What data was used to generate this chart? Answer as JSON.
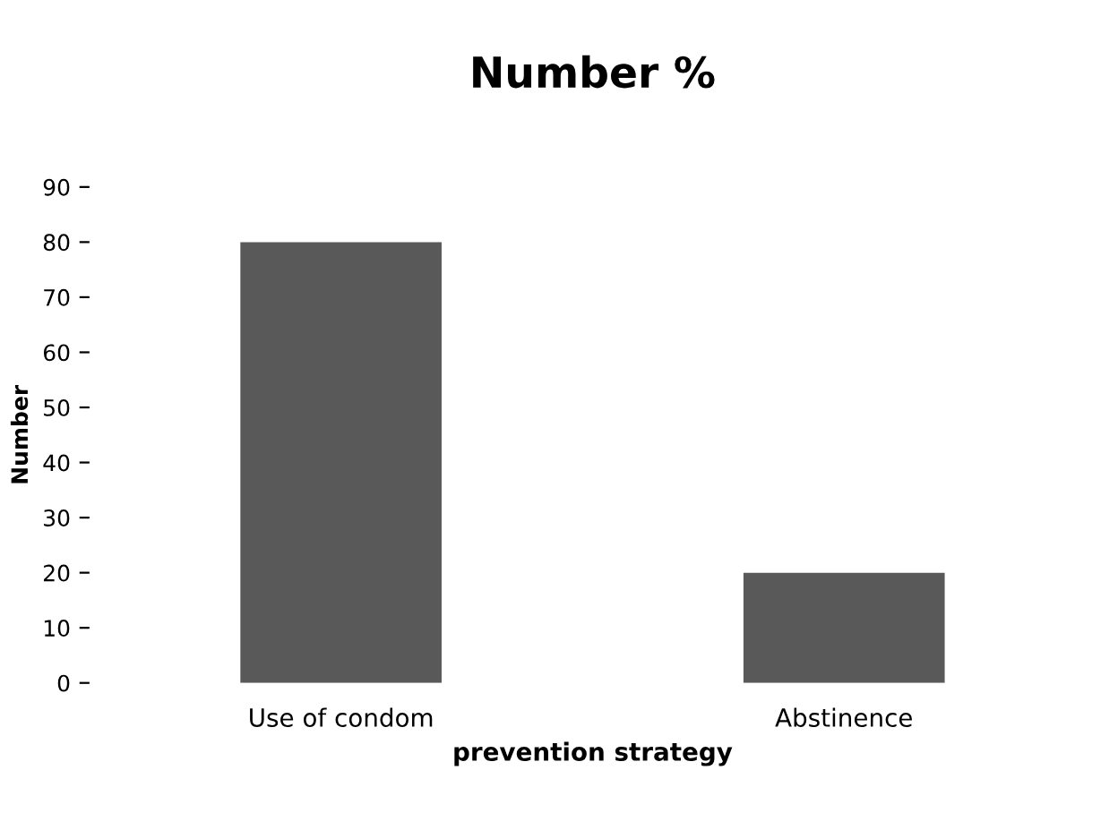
{
  "chart_data": {
    "type": "bar",
    "title": "Number %",
    "xlabel": "prevention strategy",
    "ylabel": "Number",
    "categories": [
      "Use of condom",
      "Abstinence"
    ],
    "values": [
      80,
      20
    ],
    "color": "#595959",
    "ylim": [
      0,
      90
    ],
    "yticks": [
      0,
      10,
      20,
      30,
      40,
      50,
      60,
      70,
      80,
      90
    ],
    "grid": false,
    "legend": false
  }
}
